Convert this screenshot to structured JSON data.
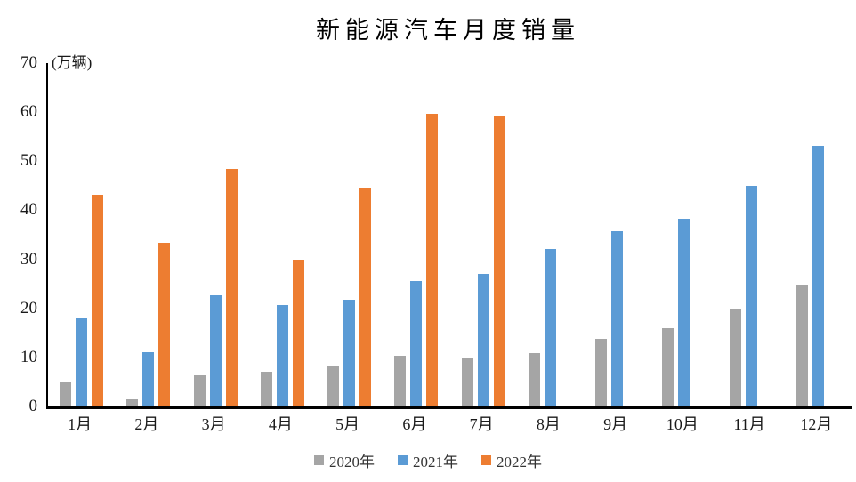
{
  "title": "新能源汽车月度销量",
  "y_axis": {
    "unit_label": "(万辆)",
    "ticks": [
      0,
      10,
      20,
      30,
      40,
      50,
      60,
      70
    ]
  },
  "colors": {
    "series_2020": "#A5A5A5",
    "series_2021": "#5B9BD5",
    "series_2022": "#ED7D31",
    "axis": "#000000",
    "background": "#FFFFFF"
  },
  "chart_data": {
    "type": "bar",
    "title": "新能源汽车月度销量",
    "ylabel": "(万辆)",
    "xlabel": "",
    "ylim": [
      0,
      70
    ],
    "ytick_step": 10,
    "grid": false,
    "legend_position": "bottom",
    "categories": [
      "1月",
      "2月",
      "3月",
      "4月",
      "5月",
      "6月",
      "7月",
      "8月",
      "9月",
      "10月",
      "11月",
      "12月"
    ],
    "series": [
      {
        "name": "2020年",
        "color": "#A5A5A5",
        "values": [
          4.9,
          1.4,
          6.3,
          7.0,
          8.1,
          10.3,
          9.8,
          10.8,
          13.8,
          16.0,
          20.0,
          24.8
        ]
      },
      {
        "name": "2021年",
        "color": "#5B9BD5",
        "values": [
          17.9,
          11.0,
          22.6,
          20.6,
          21.7,
          25.6,
          27.1,
          32.1,
          35.7,
          38.3,
          45.0,
          53.1
        ]
      },
      {
        "name": "2022年",
        "color": "#ED7D31",
        "values": [
          43.1,
          33.4,
          48.4,
          29.9,
          44.7,
          59.6,
          59.3,
          null,
          null,
          null,
          null,
          null
        ]
      }
    ]
  }
}
